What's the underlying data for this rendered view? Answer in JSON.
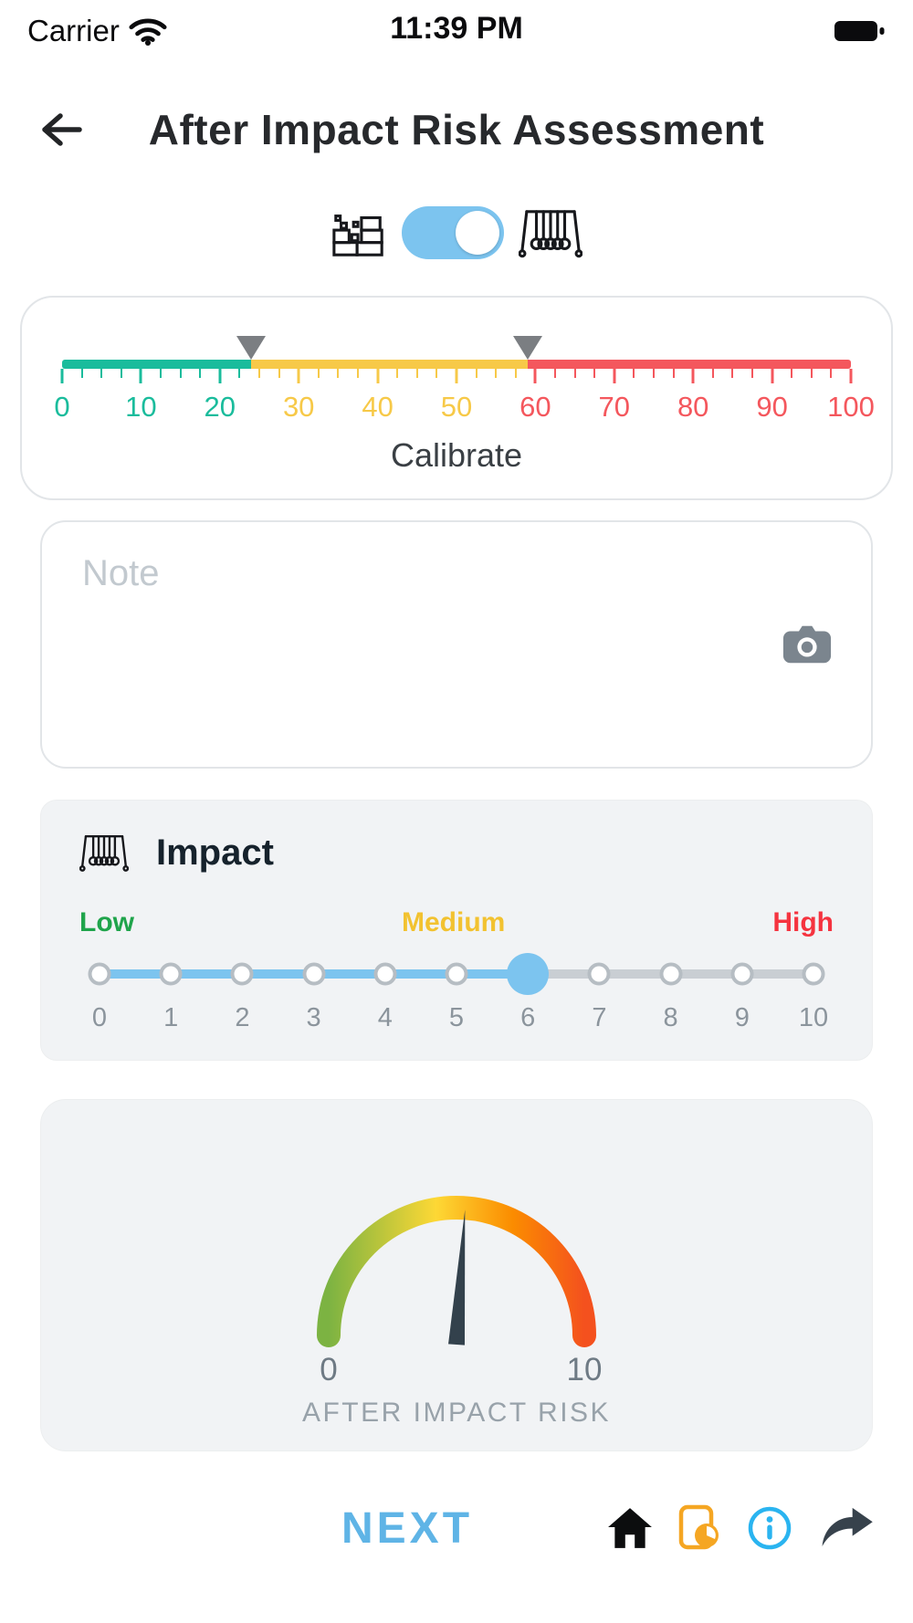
{
  "status_bar": {
    "carrier": "Carrier",
    "time": "11:39 PM"
  },
  "header": {
    "title": "After Impact Risk Assessment"
  },
  "mode_toggle": {
    "left_icon": "damaged-wall-icon",
    "right_icon": "newton-cradle-icon",
    "state": "on",
    "accent_color": "#7cc4ef"
  },
  "calibrate": {
    "label": "Calibrate",
    "min": 0,
    "max": 100,
    "tick_step_minor": 2.5,
    "tick_labels": [
      0,
      10,
      20,
      30,
      40,
      50,
      60,
      70,
      80,
      90,
      100
    ],
    "segments": [
      {
        "from": 0,
        "to": 24,
        "color": "#1abc9c"
      },
      {
        "from": 24,
        "to": 59,
        "color": "#f7c948"
      },
      {
        "from": 59,
        "to": 100,
        "color": "#f4575d"
      }
    ],
    "markers": [
      {
        "value": 24,
        "color": "#7b7e82"
      },
      {
        "value": 59,
        "color": "#7b7e82"
      }
    ]
  },
  "note": {
    "placeholder": "Note",
    "camera_icon": "camera-icon"
  },
  "impact": {
    "icon": "newton-cradle-icon",
    "title": "Impact",
    "levels": [
      {
        "label": "Low",
        "color": "#1fa44b"
      },
      {
        "label": "Medium",
        "color": "#f2c230"
      },
      {
        "label": "High",
        "color": "#f5333f"
      }
    ],
    "min": 0,
    "max": 10,
    "value": 6,
    "active_color": "#7cc4ef",
    "inactive_color": "#c9ced3",
    "scale_labels": [
      0,
      1,
      2,
      3,
      4,
      5,
      6,
      7,
      8,
      9,
      10
    ]
  },
  "gauge": {
    "type": "gauge",
    "min": 0,
    "max": 10,
    "value": 5.2,
    "min_label": "0",
    "max_label": "10",
    "caption": "AFTER IMPACT RISK",
    "arc_colors": [
      "#7cb342",
      "#fdd835",
      "#fb8c00",
      "#f4511e"
    ],
    "needle_color": "#33414c"
  },
  "footer": {
    "next_label": "NEXT",
    "next_color": "#5fb4e6",
    "icons": [
      "home-icon",
      "report-icon",
      "info-icon",
      "share-icon"
    ],
    "report_color": "#f5a623",
    "info_color": "#2ab4f0"
  }
}
